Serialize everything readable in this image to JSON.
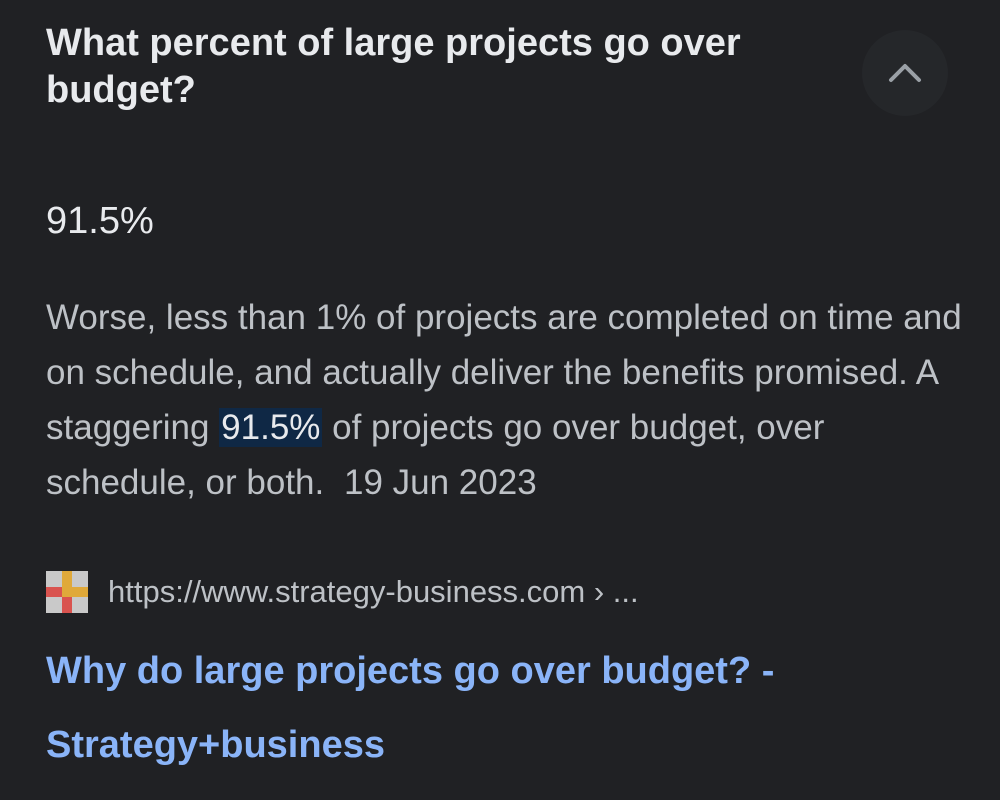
{
  "question": "What percent of large projects go over budget?",
  "collapse_icon": "chevron-up-icon",
  "answer": "91.5%",
  "snippet": {
    "before": "Worse, less than 1% of projects are completed on time and on schedule, and actually deliver the benefits promised. A staggering ",
    "highlight": "91.5%",
    "after": " of projects go over budget, over schedule, or both.",
    "date": "19 Jun 2023"
  },
  "source": {
    "favicon_icon": "strategy-business-favicon-icon",
    "url": "https://www.strategy-business.com › ..."
  },
  "result_title": "Why do large projects go over budget? - Strategy+business",
  "colors": {
    "background": "#202124",
    "text_primary": "#e8eaed",
    "text_secondary": "#bdc1c6",
    "link": "#8ab4f8",
    "highlight_bg": "#0f2845"
  }
}
